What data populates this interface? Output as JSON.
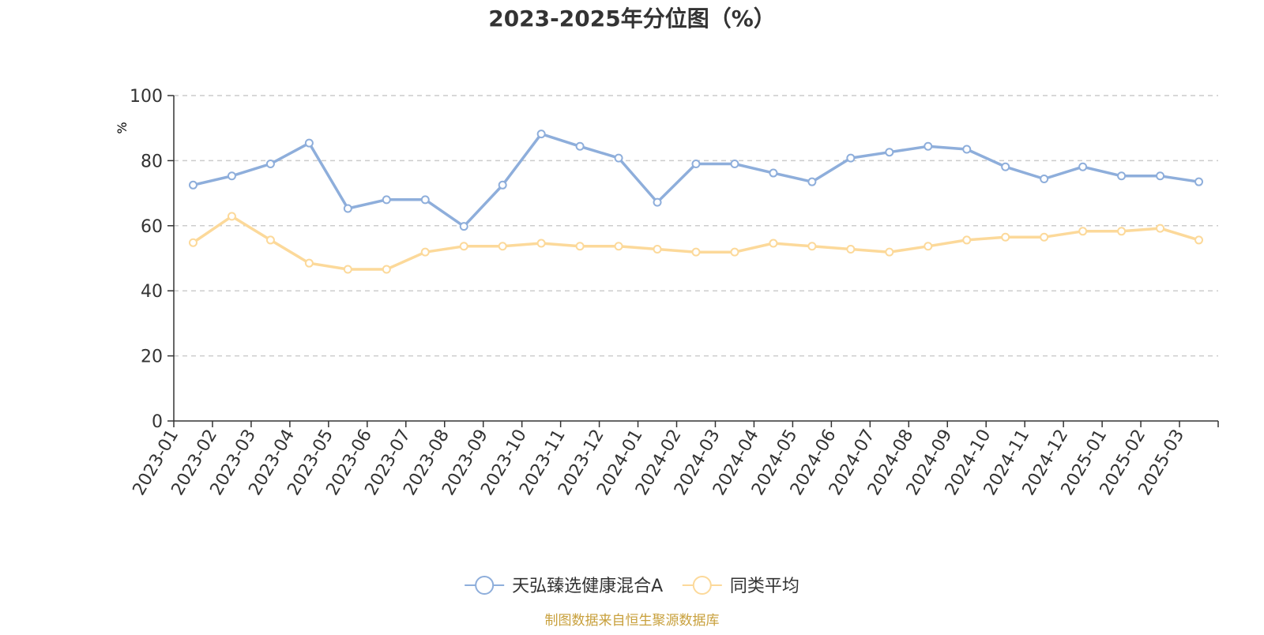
{
  "chart_data": {
    "type": "line",
    "title": "2023-2025年分位图（%）",
    "ylabel": "%",
    "ylim": [
      0,
      100
    ],
    "yticks": [
      "0",
      "20",
      "40",
      "60",
      "80",
      "100"
    ],
    "grid": true,
    "legend_position": "bottom",
    "categories": [
      "2023-01",
      "2023-02",
      "2023-03",
      "2023-04",
      "2023-05",
      "2023-06",
      "2023-07",
      "2023-08",
      "2023-09",
      "2023-10",
      "2023-11",
      "2023-12",
      "2024-01",
      "2024-02",
      "2024-03",
      "2024-04",
      "2024-05",
      "2024-06",
      "2024-07",
      "2024-08",
      "2024-09",
      "2024-10",
      "2024-11",
      "2024-12",
      "2025-01",
      "2025-02",
      "2025-03"
    ],
    "series": [
      {
        "name": "天弘臻选健康混合A",
        "color": "#8eaedb",
        "values": [
          72.5,
          75.3,
          79.0,
          85.4,
          65.3,
          68.0,
          68.0,
          59.8,
          72.5,
          88.2,
          84.4,
          80.8,
          67.2,
          79.0,
          79.0,
          76.2,
          73.5,
          80.8,
          82.6,
          84.4,
          83.5,
          78.1,
          74.4,
          78.1,
          75.3,
          75.3,
          73.5
        ]
      },
      {
        "name": "同类平均",
        "color": "#fcd99a",
        "values": [
          54.8,
          62.9,
          55.6,
          48.5,
          46.6,
          46.6,
          51.9,
          53.7,
          53.7,
          54.6,
          53.7,
          53.7,
          52.8,
          51.9,
          51.9,
          54.6,
          53.7,
          52.8,
          51.9,
          53.7,
          55.6,
          56.5,
          56.5,
          58.3,
          58.3,
          59.2,
          55.6
        ]
      }
    ],
    "source": "制图数据来自恒生聚源数据库"
  }
}
